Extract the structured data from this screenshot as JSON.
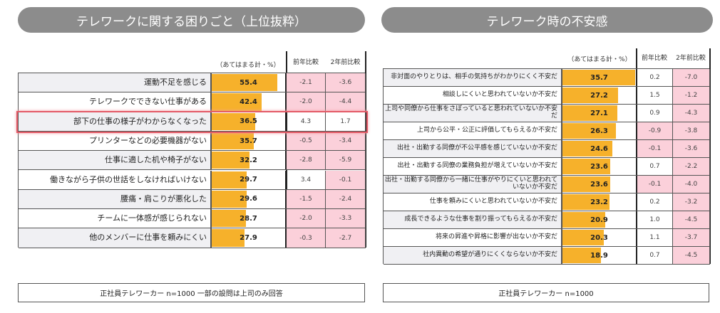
{
  "left": {
    "title": "テレワークに関する困りごと（上位抜粋）",
    "unit_header": "（あてはまる計・%）",
    "col1_header": "前年比較",
    "col2_header": "2年前比較",
    "footer": "正社員テレワーカー n=1000 一部の設問は上司のみ回答",
    "highlight_row": 2,
    "rows": [
      {
        "label": "運動不足を感じる",
        "value": 55.4,
        "yoy": "-2.1",
        "y2": "-3.6"
      },
      {
        "label": "テレワークでできない仕事がある",
        "value": 42.4,
        "yoy": "-2.0",
        "y2": "-4.4"
      },
      {
        "label": "部下の仕事の様子がわからなくなった",
        "value": 36.5,
        "yoy": "4.3",
        "y2": "1.7"
      },
      {
        "label": "プリンターなどの必要機器がない",
        "value": 35.7,
        "yoy": "-0.5",
        "y2": "-3.4"
      },
      {
        "label": "仕事に適した机や椅子がない",
        "value": 32.2,
        "yoy": "-2.8",
        "y2": "-5.9"
      },
      {
        "label": "働きながら子供の世話をしなければいけない",
        "value": 29.7,
        "yoy": "3.4",
        "y2": "-0.1"
      },
      {
        "label": "腰痛・肩こりが悪化した",
        "value": 29.6,
        "yoy": "-1.5",
        "y2": "-2.4"
      },
      {
        "label": "チームに一体感が感じられない",
        "value": 28.7,
        "yoy": "-2.0",
        "y2": "-3.3"
      },
      {
        "label": "他のメンバーに仕事を頼みにくい",
        "value": 27.9,
        "yoy": "-0.3",
        "y2": "-2.7"
      }
    ]
  },
  "right": {
    "title": "テレワーク時の不安感",
    "unit_header": "（あてはまる計・%）",
    "col1_header": "前年比較",
    "col2_header": "2年前比較",
    "footer": "正社員テレワーカー n=1000",
    "rows": [
      {
        "label": "非対面のやりとりは、相手の気持ちがわかりにくく不安だ",
        "value": 35.7,
        "yoy": "0.2",
        "y2": "-7.0"
      },
      {
        "label": "相談しにくいと思われていないか不安だ",
        "value": 27.2,
        "yoy": "1.5",
        "y2": "-1.2"
      },
      {
        "label": "上司や同僚から仕事をさぼっていると思われていないか不安だ",
        "value": 27.1,
        "yoy": "0.9",
        "y2": "-4.3"
      },
      {
        "label": "上司から公平・公正に評価してもらえるか不安だ",
        "value": 26.3,
        "yoy": "-0.9",
        "y2": "-3.8"
      },
      {
        "label": "出社・出勤する同僚が不公平感を感じていないか不安だ",
        "value": 24.6,
        "yoy": "-0.1",
        "y2": "-3.6"
      },
      {
        "label": "出社・出勤する同僚の業務負担が増えていないか不安だ",
        "value": 23.6,
        "yoy": "0.7",
        "y2": "-2.2"
      },
      {
        "label": "出社・出勤する同僚から一緒に仕事がやりにくいと思われていないか不安だ",
        "value": 23.6,
        "yoy": "-0.1",
        "y2": "-4.0"
      },
      {
        "label": "仕事を頼みにくいと思われていないか不安だ",
        "value": 23.2,
        "yoy": "0.2",
        "y2": "-3.2"
      },
      {
        "label": "成長できるような仕事を割り振ってもらえるか不安だ",
        "value": 20.9,
        "yoy": "1.0",
        "y2": "-4.5"
      },
      {
        "label": "将来の昇進や昇格に影響が出ないか不安だ",
        "value": 20.3,
        "yoy": "1.1",
        "y2": "-3.7"
      },
      {
        "label": "社内異動の希望が通りにくくならないか不安だ",
        "value": 18.9,
        "yoy": "0.7",
        "y2": "-4.5"
      }
    ]
  },
  "colors": {
    "bar": "#f6b12b",
    "negative_cell": "#fbd0da",
    "title_pill": "#8c8c8c",
    "highlight": "#e35a66"
  }
}
